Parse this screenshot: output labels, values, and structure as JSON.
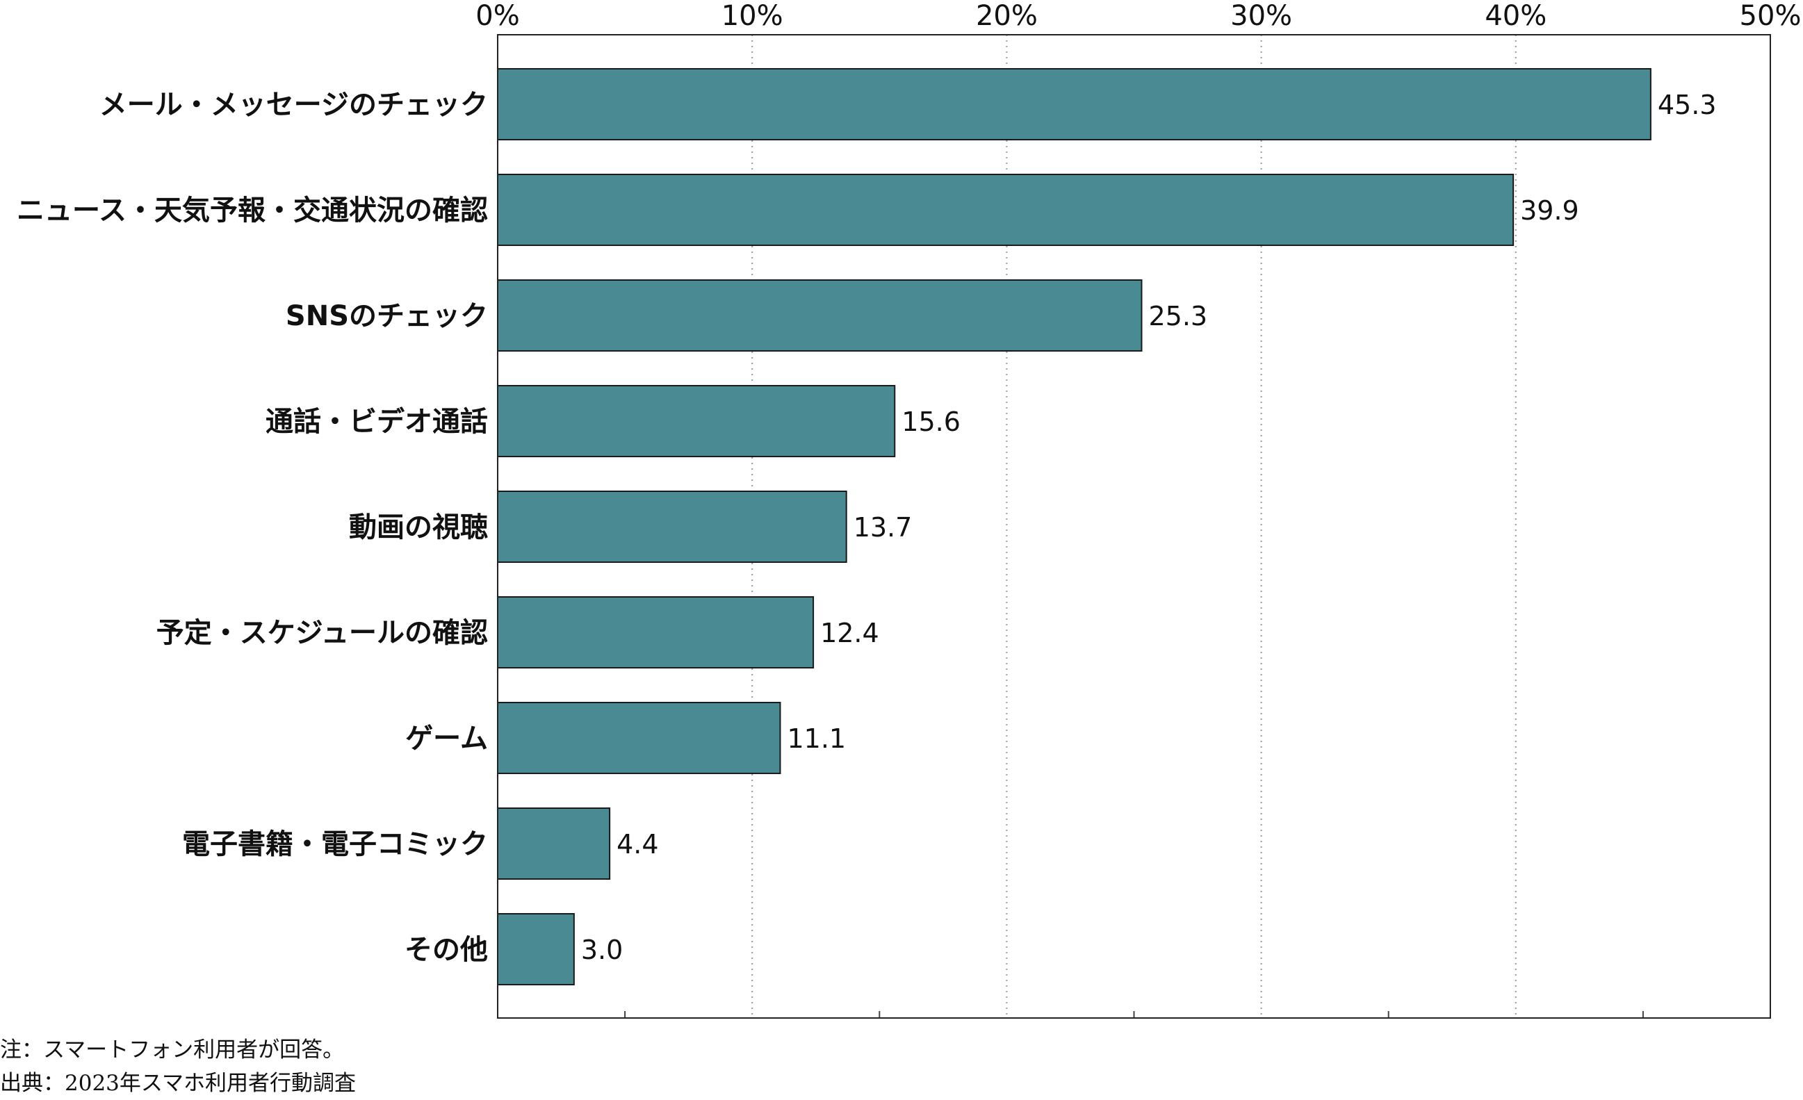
{
  "chart_data": {
    "type": "bar",
    "orientation": "horizontal",
    "categories": [
      "メール・メッセージのチェック",
      "ニュース・天気予報・交通状況の確認",
      "SNSのチェック",
      "通話・ビデオ通話",
      "動画の視聴",
      "予定・スケジュールの確認",
      "ゲーム",
      "電子書籍・電子コミック",
      "その他"
    ],
    "values": [
      45.3,
      39.9,
      25.3,
      15.6,
      13.7,
      12.4,
      11.1,
      4.4,
      3.0
    ],
    "value_labels": [
      "45.3",
      "39.9",
      "25.3",
      "15.6",
      "13.7",
      "12.4",
      "11.1",
      "4.4",
      "3.0"
    ],
    "xlim": [
      0,
      50
    ],
    "x_ticks": [
      0,
      10,
      20,
      30,
      40,
      50
    ],
    "x_tick_labels": [
      "0%",
      "10%",
      "20%",
      "30%",
      "40%",
      "50%"
    ],
    "x_axis_position": "top",
    "grid": "dotted vertical at 10% intervals",
    "bar_color": "#4a8a92",
    "bar_edge_color": "#1a1a1a"
  },
  "notes": {
    "note": "注：スマートフォン利用者が回答。",
    "source": "出典：2023年スマホ利用者行動調査"
  }
}
